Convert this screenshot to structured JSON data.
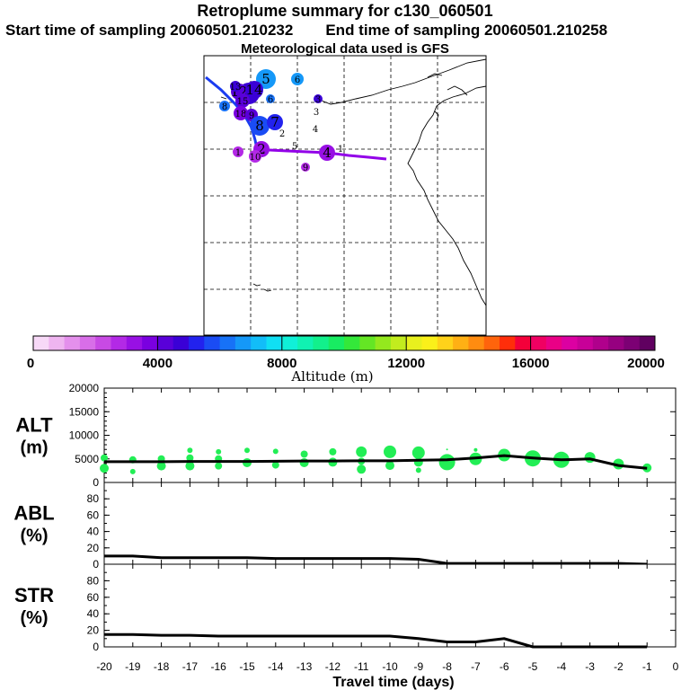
{
  "header": {
    "title": "Retroplume summary for c130_060501",
    "start_label": "Start time of sampling 20060501.210232",
    "end_label": "End time of sampling 20060501.210258",
    "met_label": "Meteorological data used is GFS"
  },
  "colorbar": {
    "label": "Altitude (m)",
    "ticks": [
      "0",
      "4000",
      "8000",
      "12000",
      "16000",
      "20000"
    ],
    "colors": [
      "#f7d9f7",
      "#efb5f0",
      "#e490ec",
      "#d86ee8",
      "#c84ae4",
      "#b329e6",
      "#9810e4",
      "#7a00e0",
      "#5900d9",
      "#3a00d6",
      "#2222ee",
      "#1a4cf4",
      "#1772f7",
      "#1598f8",
      "#12bdf8",
      "#10dff3",
      "#10f0d8",
      "#10f2b2",
      "#12f08c",
      "#18ec62",
      "#34e83a",
      "#64e624",
      "#94e81e",
      "#c2ec1e",
      "#e8f01e",
      "#faf01a",
      "#ffd21a",
      "#ffb014",
      "#ff8c10",
      "#ff640c",
      "#ff2e0a",
      "#f4003a",
      "#f00062",
      "#ea0086",
      "#dc00a2",
      "#c80098",
      "#b0008c",
      "#960080",
      "#7c0074",
      "#600060"
    ]
  },
  "map": {
    "trajectory_lines": [
      {
        "name": "plume-line-east",
        "color": "#9200e8"
      },
      {
        "name": "plume-line-north",
        "color": "#1a3cf0"
      }
    ],
    "markers": [
      {
        "label": "5",
        "color": "#1598f8",
        "r": 11
      },
      {
        "label": "6",
        "color": "#1598f8",
        "r": 7
      },
      {
        "label": "11",
        "color": "#3a00d6",
        "r": 12
      },
      {
        "label": "12",
        "color": "#5900d9",
        "r": 9
      },
      {
        "label": "14",
        "color": "#3a00d6",
        "r": 10
      },
      {
        "label": "15",
        "color": "#5900d9",
        "r": 8
      },
      {
        "label": "13",
        "color": "#3a00d6",
        "r": 6
      },
      {
        "label": "6",
        "color": "#1772f7",
        "r": 5
      },
      {
        "label": "8",
        "color": "#1772f7",
        "r": 6
      },
      {
        "label": "18",
        "color": "#7a00e0",
        "r": 8
      },
      {
        "label": "9",
        "color": "#5900d9",
        "r": 7
      },
      {
        "label": "8",
        "color": "#1a4cf4",
        "r": 11
      },
      {
        "label": "7",
        "color": "#2222ee",
        "r": 9
      },
      {
        "label": "2",
        "color": "#000000",
        "r": 0
      },
      {
        "label": "3",
        "color": "#3a00d6",
        "r": 5
      },
      {
        "label": "3",
        "color": "#000000",
        "r": 0
      },
      {
        "label": "4",
        "color": "#000000",
        "r": 0
      },
      {
        "label": "5",
        "color": "#000000",
        "r": 0
      },
      {
        "label": "2",
        "color": "#9810e4",
        "r": 9
      },
      {
        "label": "1",
        "color": "#b329e6",
        "r": 6
      },
      {
        "label": "10",
        "color": "#b329e6",
        "r": 7
      },
      {
        "label": "4",
        "color": "#9810e4",
        "r": 9
      },
      {
        "label": "9",
        "color": "#b329e6",
        "r": 5
      },
      {
        "label": "1",
        "color": "#000000",
        "r": 0
      }
    ]
  },
  "chart_data": [
    {
      "type": "line",
      "panel": "ALT",
      "ylabel_line1": "ALT",
      "ylabel_line2": "(m)",
      "xlabel": "Travel time (days)",
      "ylim": [
        0,
        20000
      ],
      "yticks": [
        "0",
        "5000",
        "10000",
        "15000",
        "20000"
      ],
      "x": [
        -20,
        -19,
        -18,
        -17,
        -16,
        -15,
        -14,
        -13,
        -12,
        -11,
        -10,
        -9,
        -8,
        -7,
        -6,
        -5,
        -4,
        -3,
        -2,
        -1
      ],
      "median": [
        4400,
        4400,
        4400,
        4450,
        4450,
        4450,
        4500,
        4550,
        4550,
        4600,
        4600,
        4700,
        4800,
        5200,
        5700,
        5200,
        4800,
        5000,
        3600,
        3000
      ],
      "plume_points": [
        [
          -20,
          3000,
          5
        ],
        [
          -20,
          5200,
          4
        ],
        [
          -19,
          2300,
          3
        ],
        [
          -19,
          4800,
          4
        ],
        [
          -18,
          3500,
          5
        ],
        [
          -18,
          5000,
          4
        ],
        [
          -17,
          3500,
          5
        ],
        [
          -17,
          5200,
          4
        ],
        [
          -17,
          6800,
          3
        ],
        [
          -16,
          3500,
          4
        ],
        [
          -16,
          6500,
          3
        ],
        [
          -16,
          5000,
          4
        ],
        [
          -15,
          4200,
          5
        ],
        [
          -15,
          6800,
          3
        ],
        [
          -14,
          3700,
          4
        ],
        [
          -14,
          6600,
          3
        ],
        [
          -13,
          4200,
          5
        ],
        [
          -13,
          6000,
          4
        ],
        [
          -12,
          4300,
          5
        ],
        [
          -12,
          6500,
          4
        ],
        [
          -11,
          2800,
          5
        ],
        [
          -11,
          6500,
          6
        ],
        [
          -11,
          4500,
          4
        ],
        [
          -10,
          3600,
          5
        ],
        [
          -10,
          6500,
          7
        ],
        [
          -9,
          2600,
          3
        ],
        [
          -9,
          6300,
          7
        ],
        [
          -9,
          4300,
          5
        ],
        [
          -8,
          4300,
          9
        ],
        [
          -8,
          7000,
          1
        ],
        [
          -7,
          5000,
          7
        ],
        [
          -7,
          6900,
          2
        ],
        [
          -6,
          5800,
          7
        ],
        [
          -5,
          5100,
          9
        ],
        [
          -4,
          4800,
          9
        ],
        [
          -3,
          5300,
          6
        ],
        [
          -2,
          3900,
          6
        ],
        [
          -1,
          3100,
          5
        ]
      ]
    },
    {
      "type": "line",
      "panel": "ABL",
      "ylabel_line1": "ABL",
      "ylabel_line2": "(%)",
      "ylim": [
        0,
        100
      ],
      "yticks": [
        "0",
        "20",
        "40",
        "60",
        "80"
      ],
      "x": [
        -20,
        -19,
        -18,
        -17,
        -16,
        -15,
        -14,
        -13,
        -12,
        -11,
        -10,
        -9,
        -8,
        -7,
        -6,
        -5,
        -4,
        -3,
        -2,
        -1
      ],
      "values": [
        10,
        10,
        8,
        8,
        8,
        8,
        7,
        7,
        7,
        7,
        7,
        6,
        1,
        1,
        1,
        1,
        1,
        1,
        1,
        0
      ]
    },
    {
      "type": "line",
      "panel": "STR",
      "ylabel_line1": "STR",
      "ylabel_line2": "(%)",
      "ylim": [
        0,
        100
      ],
      "yticks": [
        "0",
        "20",
        "40",
        "60",
        "80"
      ],
      "x": [
        -20,
        -19,
        -18,
        -17,
        -16,
        -15,
        -14,
        -13,
        -12,
        -11,
        -10,
        -9,
        -8,
        -7,
        -6,
        -5,
        -4,
        -3,
        -2,
        -1
      ],
      "values": [
        15,
        15,
        14,
        14,
        13,
        13,
        13,
        13,
        13,
        13,
        13,
        10,
        6,
        6,
        10,
        0,
        0,
        0,
        0,
        0
      ]
    }
  ],
  "x_axis": {
    "ticks": [
      "-20",
      "-19",
      "-18",
      "-17",
      "-16",
      "-15",
      "-14",
      "-13",
      "-12",
      "-11",
      "-10",
      "-9",
      "-8",
      "-7",
      "-6",
      "-5",
      "-4",
      "-3",
      "-2",
      "-1",
      "0"
    ],
    "label": "Travel time (days)"
  }
}
